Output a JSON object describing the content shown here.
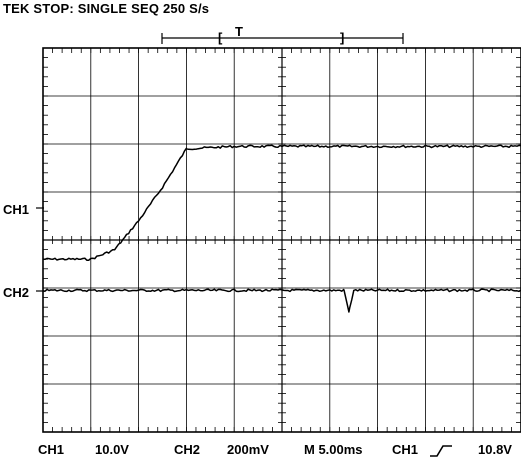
{
  "header": {
    "status": "TEK STOP: SINGLE SEQ 250 S/s",
    "trigger_marker": "T"
  },
  "channels": [
    {
      "label": "CH1"
    },
    {
      "label": "CH2"
    }
  ],
  "footer": {
    "ch1_label": "CH1",
    "ch1_scale": "10.0V",
    "ch2_label": "CH2",
    "ch2_scale": "200mV",
    "timebase": "M 5.00ms",
    "trigger_source": "CH1",
    "trigger_slope_icon": "rising-edge-icon",
    "trigger_level": "10.8V"
  },
  "chart_data": {
    "type": "line",
    "title": "TEK STOP: SINGLE SEQ 250 S/s",
    "xlabel": "M 5.00ms",
    "ylabel": "",
    "grid": true,
    "x_divisions": 10,
    "y_divisions": 8,
    "xlim": [
      0,
      10
    ],
    "ylim": [
      -4,
      4
    ],
    "series": [
      {
        "name": "CH1",
        "x": [
          0,
          1,
          1.5,
          2,
          2.5,
          3,
          4,
          5,
          6,
          7,
          8,
          9,
          10
        ],
        "y": [
          -0.4,
          -0.4,
          -0.2,
          0.4,
          1.1,
          1.9,
          1.95,
          1.95,
          1.95,
          1.95,
          1.95,
          1.95,
          1.95
        ]
      },
      {
        "name": "CH2",
        "x": [
          0,
          1,
          2,
          3,
          4,
          5,
          6,
          6.3,
          6.4,
          6.5,
          7,
          8,
          9,
          10
        ],
        "y": [
          -1.05,
          -1.05,
          -1.05,
          -1.05,
          -1.05,
          -1.05,
          -1.05,
          -1.05,
          -1.5,
          -1.05,
          -1.05,
          -1.05,
          -1.05,
          -1.05
        ]
      }
    ]
  }
}
